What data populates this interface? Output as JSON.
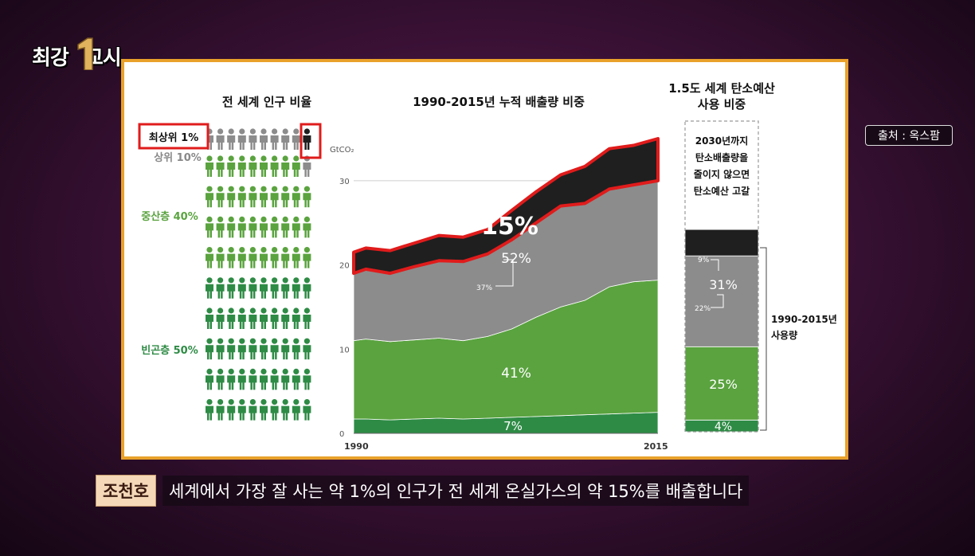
{
  "overlay": {
    "logo_text_left": "최강",
    "logo_text_right": "교시",
    "source_label": "출처 : 옥스팜",
    "speaker": "조천호",
    "caption": "세계에서 가장 잘 사는 약 1%의 인구가 전 세계 온실가스의 약 15%를 배출합니다"
  },
  "colors": {
    "top1": "#1f1f1f",
    "rich": "#8c8c8c",
    "middle": "#5aa33f",
    "poor": "#2e8b45",
    "highlight": "#e01b1b",
    "frame": "#e9a12a"
  },
  "chart_data": [
    {
      "type": "pictogram",
      "title": "전 세계 인구 비율",
      "groups": [
        {
          "label": "최상위 1%",
          "share": 1
        },
        {
          "label": "상위 10%",
          "share": 10
        },
        {
          "label": "중산층 40%",
          "share": 40
        },
        {
          "label": "빈곤층 50%",
          "share": 50
        }
      ],
      "total_icons": 100
    },
    {
      "type": "area",
      "title": "1990-2015년 누적 배출량 비중",
      "unit_label": "GtCO₂",
      "x_labels": [
        "1990",
        "2015"
      ],
      "x": [
        1990,
        1991,
        1993,
        1995,
        1997,
        1999,
        2001,
        2003,
        2005,
        2007,
        2009,
        2011,
        2013,
        2015
      ],
      "ylim": [
        0,
        35
      ],
      "yticks": [
        0,
        10,
        20,
        30
      ],
      "series": [
        {
          "label": "7%",
          "cumulative_top": [
            1.7,
            1.7,
            1.6,
            1.7,
            1.8,
            1.7,
            1.8,
            1.9,
            2.0,
            2.1,
            2.2,
            2.3,
            2.4,
            2.5
          ]
        },
        {
          "label": "41%",
          "cumulative_top": [
            11.0,
            11.2,
            10.9,
            11.1,
            11.3,
            11.0,
            11.5,
            12.4,
            13.8,
            15.0,
            15.8,
            17.4,
            18.0,
            18.2
          ]
        },
        {
          "label": "52%",
          "note": "37%",
          "cumulative_top": [
            19.0,
            19.5,
            19.0,
            19.8,
            20.5,
            20.4,
            21.3,
            23.0,
            25.0,
            27.0,
            27.3,
            29.0,
            29.5,
            30.0
          ]
        },
        {
          "label": "15%",
          "cumulative_top": [
            21.5,
            22.0,
            21.7,
            22.6,
            23.5,
            23.3,
            24.2,
            26.5,
            28.7,
            30.7,
            31.7,
            33.8,
            34.2,
            35.0
          ]
        }
      ]
    },
    {
      "type": "stacked_bar",
      "title_line1": "1.5도 세계 탄소예산",
      "title_line2": "사용 비중",
      "segments": [
        {
          "label": "4%",
          "value": 4
        },
        {
          "label": "25%",
          "value": 25
        },
        {
          "label": "31%",
          "value": 31,
          "note": "22%"
        },
        {
          "label": "9%",
          "value": 9
        }
      ],
      "used_label_line1": "1990-2015년",
      "used_label_line2": "사용량",
      "note_lines": [
        "2030년까지",
        "탄소배출량을",
        "줄이지 않으면",
        "탄소예산 고갈"
      ]
    }
  ]
}
